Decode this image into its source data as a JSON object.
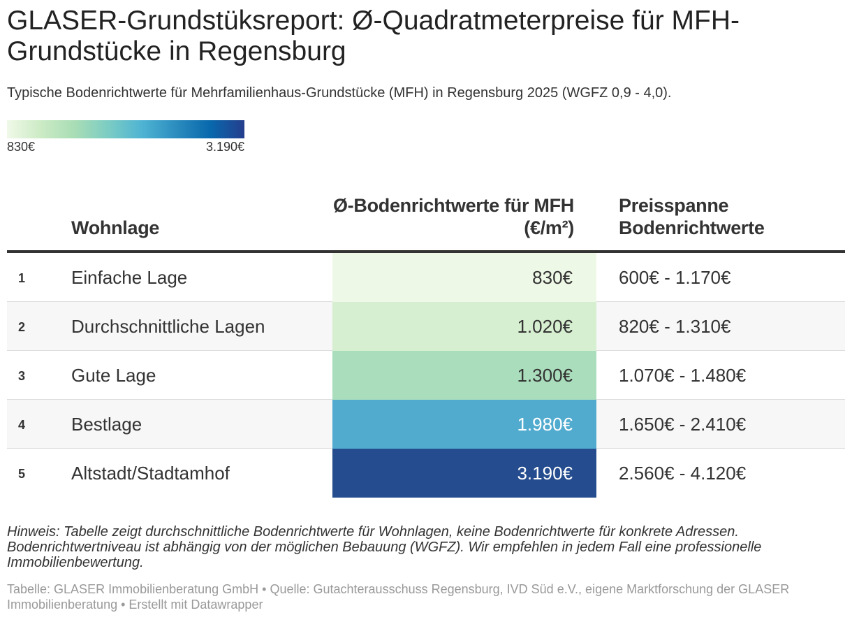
{
  "header": {
    "title": "GLASER-Grundstüksreport: Ø-Quadratmeterpreise für MFH-Grundstücke in Regensburg",
    "subtitle": "Typische Bodenrichtwerte für Mehrfamilienhaus-Grundstücke (MFH) in Regensburg 2025 (WGFZ 0,9 - 4,0)."
  },
  "legend": {
    "min_label": "830€",
    "max_label": "3.190€",
    "min_value": 830,
    "max_value": 3190,
    "colors": [
      "#f0f9e8",
      "#ccebc5",
      "#a8ddb5",
      "#7bccc4",
      "#4eb3d3",
      "#2b8cbe",
      "#0868ac",
      "#253e8d"
    ]
  },
  "table": {
    "columns": {
      "wohnlage": "Wohnlage",
      "value": "Ø-Bodenrichtwerte für MFH (€/m²)",
      "range": "Preisspanne Bodenrichtwerte"
    }
  },
  "chart_data": {
    "type": "table",
    "title": "GLASER-Grundstüksreport: Ø-Quadratmeterpreise für MFH-Grundstücke in Regensburg",
    "columns": [
      "",
      "Wohnlage",
      "Ø-Bodenrichtwerte für MFH (€/m²)",
      "Preisspanne Bodenrichtwerte"
    ],
    "rows": [
      {
        "num": "1",
        "wohnlage": "Einfache Lage",
        "value": 830,
        "value_label": "830€",
        "range": "600€ - 1.170€",
        "color": "#eef8e6",
        "text_color": "#333333"
      },
      {
        "num": "2",
        "wohnlage": "Durchschnittliche Lagen",
        "value": 1020,
        "value_label": "1.020€",
        "range": "820€ - 1.310€",
        "color": "#d6efd0",
        "text_color": "#333333"
      },
      {
        "num": "3",
        "wohnlage": "Gute Lage",
        "value": 1300,
        "value_label": "1.300€",
        "range": "1.070€ - 1.480€",
        "color": "#aaddbc",
        "text_color": "#333333"
      },
      {
        "num": "4",
        "wohnlage": "Bestlage",
        "value": 1980,
        "value_label": "1.980€",
        "range": "1.650€ - 2.410€",
        "color": "#50abcf",
        "text_color": "#ffffff"
      },
      {
        "num": "5",
        "wohnlage": "Altstadt/Stadtamhof",
        "value": 3190,
        "value_label": "3.190€",
        "range": "2.560€ - 4.120€",
        "color": "#254c8e",
        "text_color": "#ffffff"
      }
    ]
  },
  "footer": {
    "note": "Hinweis: Tabelle zeigt durchschnittliche Bodenrichtwerte für Wohnlagen, keine Bodenrichtwerte für konkrete Adressen. Bodenrichtwertniveau ist abhängig von der möglichen Bebauung (WGFZ). Wir empfehlen in jedem Fall eine professionelle Immobilienbewertung.",
    "source": "Tabelle: GLASER Immobilienberatung GmbH • Quelle: Gutachterausschuss Regensburg, IVD Süd e.V., eigene Marktforschung der GLASER Immobilienberatung • Erstellt mit Datawrapper"
  }
}
